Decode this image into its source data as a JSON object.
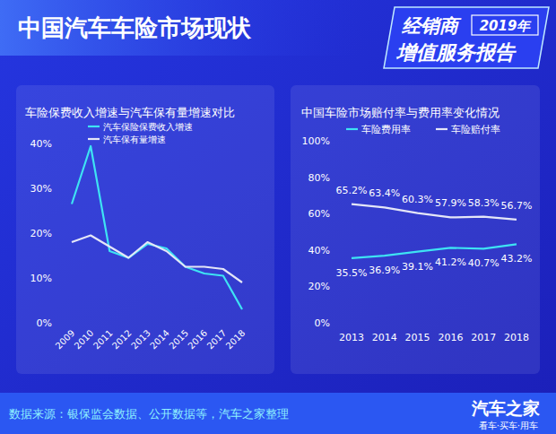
{
  "header": {
    "title": "中国汽车车险市场现状",
    "badge_top": "经销商",
    "badge_year": "2019年",
    "badge_bottom": "增值服务报告"
  },
  "chart_data": [
    {
      "type": "line",
      "title": "车险保费收入增速与汽车保有量增速对比",
      "categories": [
        "2009",
        "2010",
        "2011",
        "2012",
        "2013",
        "2014",
        "2015",
        "2016",
        "2017",
        "2018"
      ],
      "series": [
        {
          "name": "汽车保险保费收入增速",
          "color": "#3ee3f3",
          "values": [
            26.5,
            39.4,
            16,
            14.5,
            17.6,
            16.6,
            12.5,
            11,
            10.5,
            3
          ]
        },
        {
          "name": "汽车保有量增速",
          "color": "#e4e6f7",
          "values": [
            18,
            19.5,
            17,
            14.5,
            18,
            16,
            12.5,
            12.5,
            12,
            9
          ]
        }
      ],
      "ylim": [
        0,
        40
      ],
      "yticks": [
        {
          "value": 0,
          "label": "0%"
        },
        {
          "value": 10,
          "label": "10%"
        },
        {
          "value": 20,
          "label": "20%"
        },
        {
          "value": 30,
          "label": "30%"
        },
        {
          "value": 40,
          "label": "40%"
        }
      ],
      "grid": false,
      "legend": "top left",
      "data_labels": false
    },
    {
      "type": "line",
      "title": "中国车险市场赔付率与费用率变化情况",
      "categories": [
        "2013",
        "2014",
        "2015",
        "2016",
        "2017",
        "2018"
      ],
      "series": [
        {
          "name": "车险费用率",
          "color": "#3ee3f3",
          "values": [
            35.5,
            36.9,
            39.1,
            41.2,
            40.7,
            43.2
          ],
          "value_labels": [
            "35.5%",
            "36.9%",
            "39.1%",
            "41.2%",
            "40.7%",
            "43.2%"
          ]
        },
        {
          "name": "车险赔付率",
          "color": "#e4e6f7",
          "values": [
            65.2,
            63.4,
            60.3,
            57.9,
            58.3,
            56.7
          ],
          "value_labels": [
            "65.2%",
            "63.4%",
            "60.3%",
            "57.9%",
            "58.3%",
            "56.7%"
          ]
        }
      ],
      "ylim": [
        0,
        100
      ],
      "yticks": [
        {
          "value": 0,
          "label": "0%"
        },
        {
          "value": 20,
          "label": "20%"
        },
        {
          "value": 40,
          "label": "40%"
        },
        {
          "value": 60,
          "label": "60%"
        },
        {
          "value": 80,
          "label": "80%"
        },
        {
          "value": 100,
          "label": "100%"
        }
      ],
      "grid": false,
      "legend": "top",
      "data_labels": true
    }
  ],
  "footer": {
    "source": "数据来源：银保监会数据、公开数据等，汽车之家整理",
    "logo": "汽车之家",
    "slogan": "看车·买车·用车"
  }
}
